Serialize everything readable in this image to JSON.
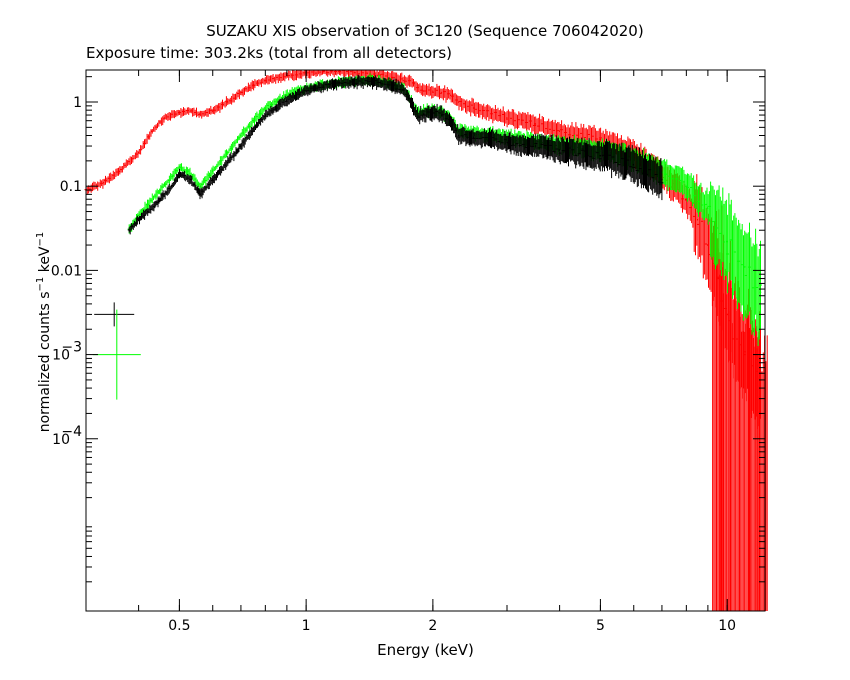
{
  "title": "SUZAKU XIS observation of 3C120 (Sequence 706042020)",
  "subtitle": "Exposure time: 303.2ks (total from all detectors)",
  "chart_data": {
    "type": "scatter",
    "xlabel": "Energy (keV)",
    "ylabel_parts": {
      "base": "normalized counts s",
      "exp1": "−1",
      "mid": " keV",
      "exp2": "−1"
    },
    "xscale": "log",
    "yscale": "log",
    "xlim": [
      0.3,
      12.3
    ],
    "ylim": [
      9e-07,
      2.4
    ],
    "x_ticks": [
      {
        "value": 0.5,
        "label": "0.5"
      },
      {
        "value": 1,
        "label": "1"
      },
      {
        "value": 2,
        "label": "2"
      },
      {
        "value": 5,
        "label": "5"
      },
      {
        "value": 10,
        "label": "10"
      }
    ],
    "y_ticks": [
      {
        "value": 1,
        "label": "1"
      },
      {
        "value": 0.1,
        "label": "0.1"
      },
      {
        "value": 0.01,
        "label": "0.01"
      },
      {
        "value": 0.001,
        "label": "10",
        "exp": "−3"
      },
      {
        "value": 0.0001,
        "label": "10",
        "exp": "−4"
      }
    ],
    "series": [
      {
        "color": "#ff0000",
        "x": [
          0.3,
          0.33,
          0.36,
          0.4,
          0.43,
          0.46,
          0.5,
          0.53,
          0.56,
          0.6,
          0.65,
          0.7,
          0.75,
          0.8,
          0.9,
          1.0,
          1.1,
          1.2,
          1.3,
          1.4,
          1.5,
          1.6,
          1.7,
          1.8,
          1.9,
          2.0,
          2.1,
          2.2,
          2.3,
          2.5,
          3.0,
          3.5,
          4.0,
          5.0,
          6.0,
          7.0,
          8.0,
          8.5,
          9.0,
          9.5,
          10.0,
          11.0,
          12.0
        ],
        "y": [
          0.09,
          0.11,
          0.15,
          0.25,
          0.45,
          0.65,
          0.75,
          0.78,
          0.72,
          0.78,
          1.0,
          1.3,
          1.6,
          1.8,
          2.05,
          2.2,
          2.3,
          2.3,
          2.25,
          2.2,
          2.1,
          1.95,
          1.8,
          1.65,
          1.35,
          1.35,
          1.3,
          1.2,
          1.0,
          0.85,
          0.65,
          0.55,
          0.45,
          0.36,
          0.25,
          0.14,
          0.07,
          0.04,
          0.02,
          0.008,
          0.003,
          0.001,
          0.0005
        ],
        "low_points": [
          {
            "x": 9.5,
            "y": 0.0025
          },
          {
            "x": 9.9,
            "y": 0.0009
          },
          {
            "x": 10.4,
            "y": 0.0004
          },
          {
            "x": 11.0,
            "y": 0.00025
          },
          {
            "x": 11.6,
            "y": 0.00015
          },
          {
            "x": 12.1,
            "y": 0.0001
          }
        ]
      },
      {
        "color": "#00ff00",
        "x": [
          0.38,
          0.4,
          0.42,
          0.45,
          0.48,
          0.5,
          0.53,
          0.56,
          0.6,
          0.65,
          0.7,
          0.75,
          0.8,
          0.9,
          1.0,
          1.1,
          1.2,
          1.3,
          1.4,
          1.5,
          1.6,
          1.7,
          1.75,
          1.8,
          1.85,
          1.9,
          2.0,
          2.1,
          2.2,
          2.3,
          2.5,
          3.0,
          3.5,
          4.0,
          5.0,
          6.0,
          7.0,
          8.0,
          9.0,
          10.0,
          11.0,
          12.0
        ],
        "y": [
          0.03,
          0.045,
          0.06,
          0.09,
          0.13,
          0.17,
          0.14,
          0.1,
          0.15,
          0.25,
          0.4,
          0.6,
          0.85,
          1.2,
          1.45,
          1.6,
          1.72,
          1.78,
          1.8,
          1.75,
          1.6,
          1.45,
          1.2,
          0.85,
          0.72,
          0.78,
          0.8,
          0.75,
          0.65,
          0.45,
          0.43,
          0.38,
          0.34,
          0.31,
          0.27,
          0.21,
          0.15,
          0.1,
          0.055,
          0.022,
          0.011,
          0.0055
        ]
      },
      {
        "color": "#000000",
        "x": [
          0.38,
          0.4,
          0.42,
          0.45,
          0.48,
          0.5,
          0.53,
          0.56,
          0.6,
          0.65,
          0.7,
          0.75,
          0.8,
          0.9,
          1.0,
          1.1,
          1.2,
          1.3,
          1.4,
          1.5,
          1.6,
          1.7,
          1.75,
          1.8,
          1.85,
          1.9,
          2.0,
          2.1,
          2.2,
          2.3,
          2.5,
          3.0,
          3.5,
          4.0,
          5.0,
          6.0,
          7.0
        ],
        "y": [
          0.03,
          0.04,
          0.05,
          0.07,
          0.1,
          0.14,
          0.12,
          0.08,
          0.12,
          0.19,
          0.3,
          0.48,
          0.7,
          1.05,
          1.35,
          1.55,
          1.68,
          1.74,
          1.76,
          1.7,
          1.55,
          1.4,
          1.15,
          0.82,
          0.68,
          0.72,
          0.75,
          0.7,
          0.62,
          0.4,
          0.38,
          0.33,
          0.3,
          0.27,
          0.23,
          0.18,
          0.12
        ]
      }
    ],
    "legend_markers": [
      {
        "color": "#000000",
        "x": 0.35,
        "y": 0.003
      },
      {
        "color": "#00ff00",
        "x": 0.355,
        "y": 0.001
      }
    ]
  }
}
